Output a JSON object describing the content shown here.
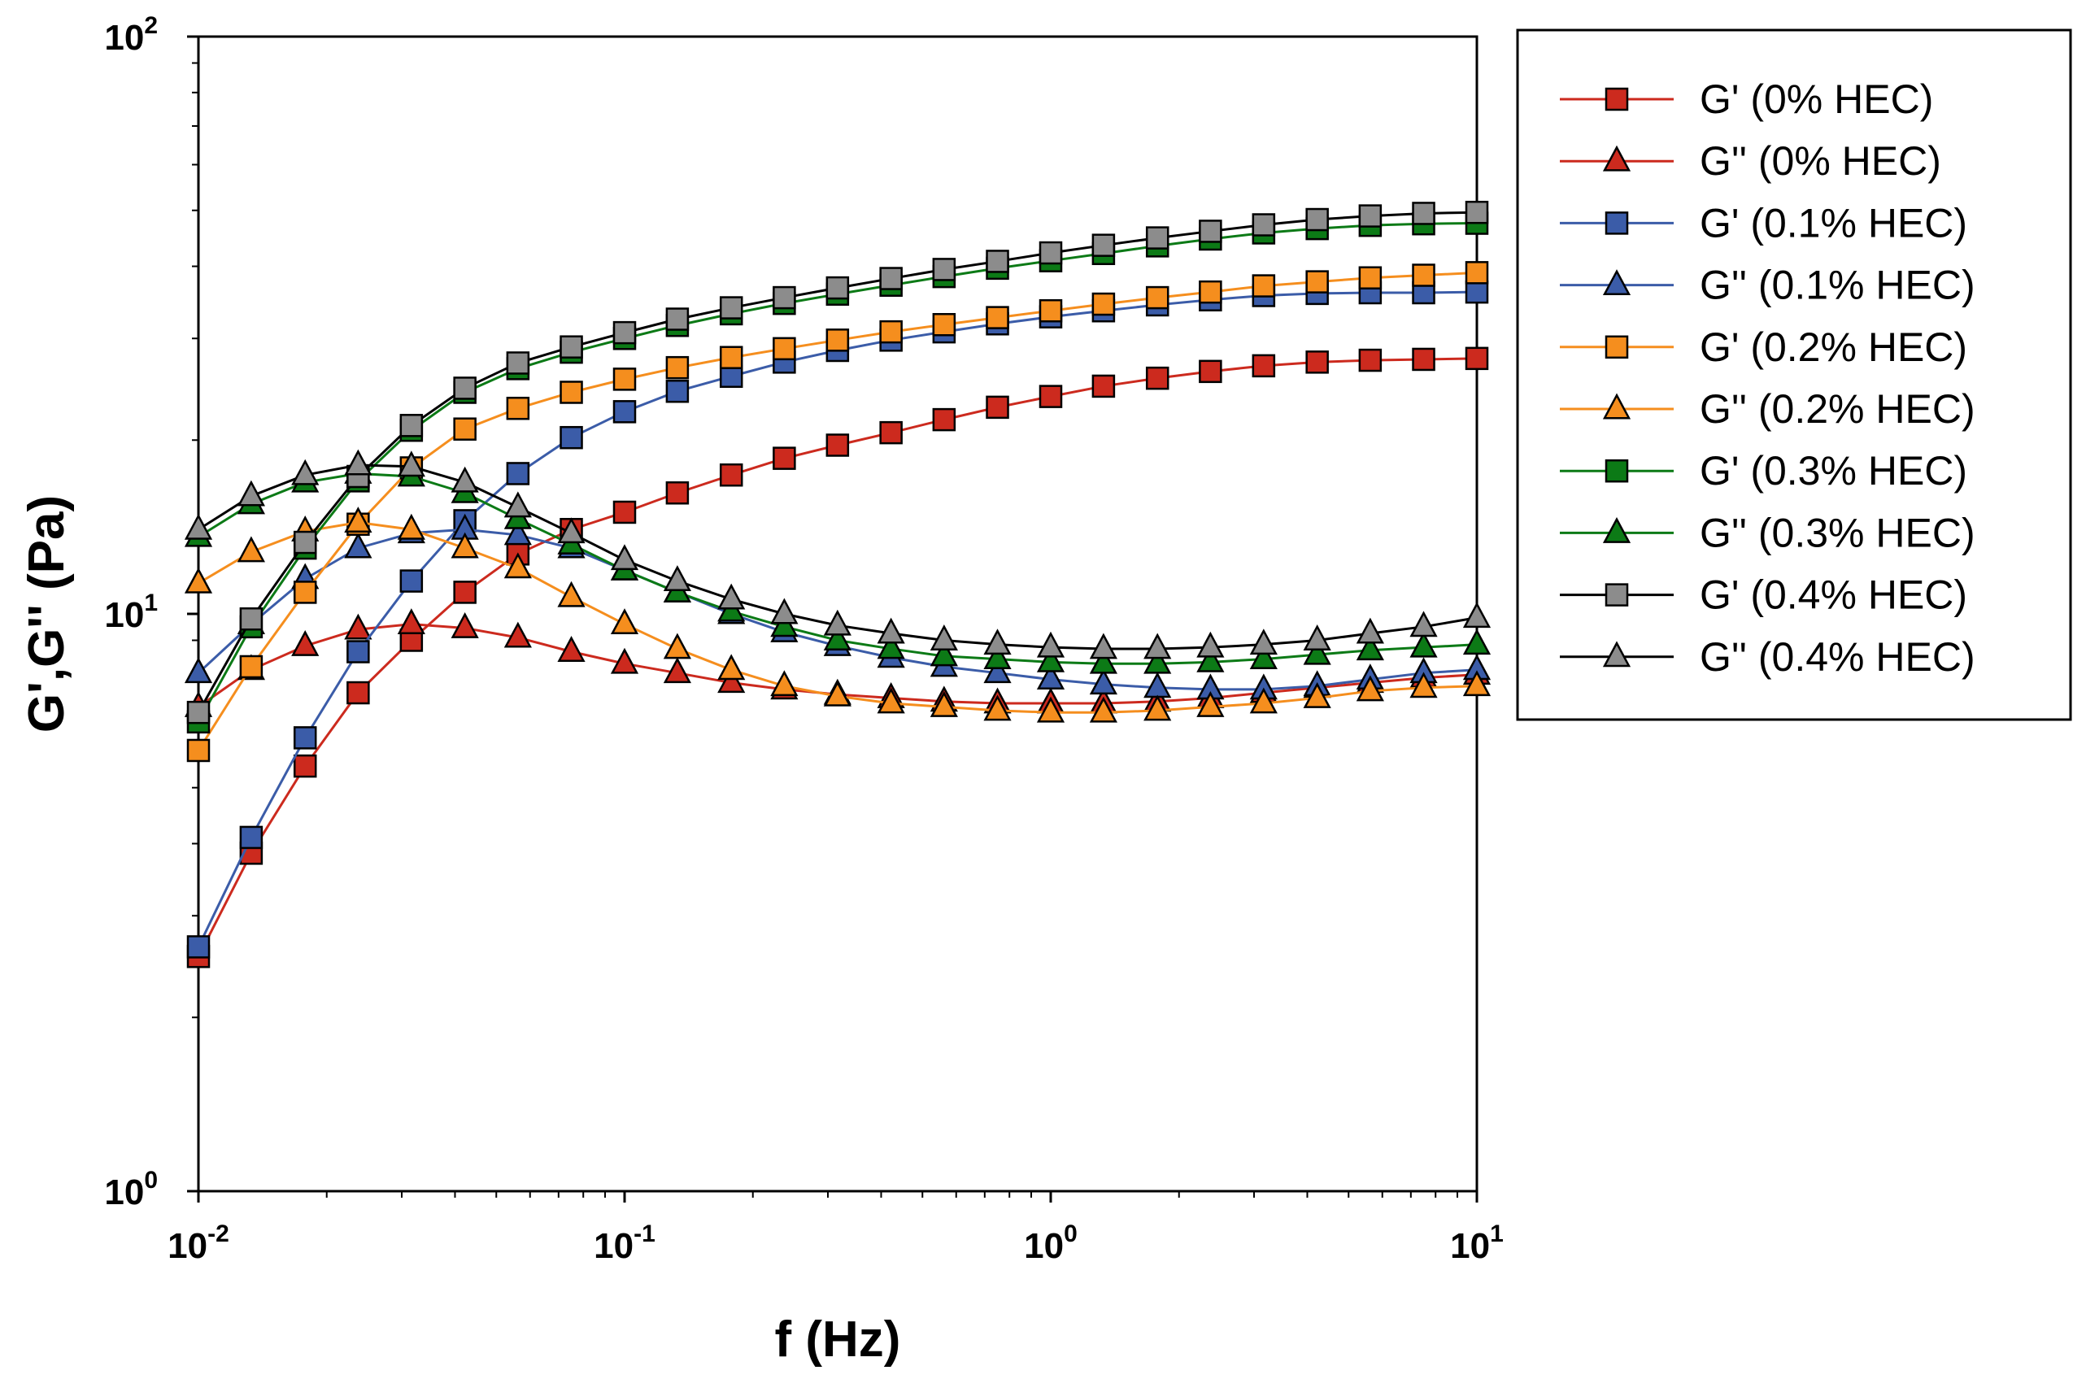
{
  "chart_data": {
    "type": "line",
    "title": "",
    "xlabel": "f (Hz)",
    "ylabel": "G',G'' (Pa)",
    "xscale": "log",
    "yscale": "log",
    "xlim": [
      0.01,
      10
    ],
    "ylim": [
      1,
      100
    ],
    "x_ticks": [
      {
        "value": 0.01,
        "base": "10",
        "exp": "-2"
      },
      {
        "value": 0.1,
        "base": "10",
        "exp": "-1"
      },
      {
        "value": 1,
        "base": "10",
        "exp": "0"
      },
      {
        "value": 10,
        "base": "10",
        "exp": "1"
      }
    ],
    "y_ticks": [
      {
        "value": 1,
        "base": "10",
        "exp": "0"
      },
      {
        "value": 10,
        "base": "10",
        "exp": "1"
      },
      {
        "value": 100,
        "base": "10",
        "exp": "2"
      }
    ],
    "grid": false,
    "legend_position": "outside-right",
    "x": [
      0.01,
      0.0133,
      0.0178,
      0.0237,
      0.0316,
      0.0422,
      0.0562,
      0.075,
      0.1,
      0.133,
      0.178,
      0.237,
      0.316,
      0.422,
      0.562,
      0.75,
      1.0,
      1.33,
      1.78,
      2.37,
      3.16,
      4.22,
      5.62,
      7.5,
      10.0
    ],
    "series": [
      {
        "name": "G' (0% HEC)",
        "marker": "square",
        "color": "#cc2a1e",
        "line_color": "#cc2a1e",
        "values": [
          2.55,
          3.85,
          5.45,
          7.3,
          9.0,
          10.9,
          12.7,
          14.0,
          15.0,
          16.2,
          17.4,
          18.6,
          19.6,
          20.6,
          21.7,
          22.8,
          23.8,
          24.8,
          25.6,
          26.3,
          26.9,
          27.3,
          27.5,
          27.6,
          27.7
        ]
      },
      {
        "name": "G'' (0% HEC)",
        "marker": "triangle",
        "color": "#cc2a1e",
        "line_color": "#cc2a1e",
        "values": [
          6.9,
          8.0,
          8.8,
          9.4,
          9.6,
          9.45,
          9.1,
          8.6,
          8.2,
          7.9,
          7.6,
          7.4,
          7.25,
          7.15,
          7.05,
          7.0,
          7.0,
          7.0,
          7.05,
          7.15,
          7.3,
          7.45,
          7.6,
          7.75,
          7.85
        ]
      },
      {
        "name": "G' (0.1% HEC)",
        "marker": "square",
        "color": "#3b5ca8",
        "line_color": "#3b5ca8",
        "values": [
          2.65,
          4.1,
          6.1,
          8.6,
          11.4,
          14.5,
          17.5,
          20.2,
          22.4,
          24.3,
          25.8,
          27.3,
          28.6,
          29.8,
          30.8,
          31.8,
          32.7,
          33.5,
          34.3,
          35.0,
          35.6,
          35.9,
          36.0,
          36.0,
          36.1
        ]
      },
      {
        "name": "G'' (0.1% HEC)",
        "marker": "triangle",
        "color": "#3b5ca8",
        "line_color": "#3b5ca8",
        "values": [
          7.9,
          9.6,
          11.5,
          13.0,
          13.8,
          14.0,
          13.7,
          13.0,
          11.9,
          10.9,
          10.0,
          9.3,
          8.8,
          8.4,
          8.1,
          7.9,
          7.7,
          7.55,
          7.45,
          7.4,
          7.4,
          7.5,
          7.7,
          7.9,
          8.0
        ]
      },
      {
        "name": "G' (0.2% HEC)",
        "marker": "square",
        "color": "#f58e1e",
        "line_color": "#f58e1e",
        "values": [
          5.8,
          8.1,
          10.9,
          14.3,
          17.9,
          20.9,
          22.7,
          24.2,
          25.5,
          26.7,
          27.8,
          28.8,
          29.8,
          30.8,
          31.7,
          32.6,
          33.5,
          34.4,
          35.3,
          36.1,
          37.0,
          37.6,
          38.2,
          38.6,
          39.0
        ]
      },
      {
        "name": "G'' (0.2% HEC)",
        "marker": "triangle",
        "color": "#f58e1e",
        "line_color": "#f58e1e",
        "values": [
          11.3,
          12.8,
          13.9,
          14.4,
          14.0,
          13.0,
          12.0,
          10.7,
          9.6,
          8.7,
          8.0,
          7.5,
          7.2,
          7.0,
          6.9,
          6.8,
          6.75,
          6.75,
          6.8,
          6.9,
          7.0,
          7.15,
          7.35,
          7.45,
          7.5
        ]
      },
      {
        "name": "G' (0.3% HEC)",
        "marker": "square",
        "color": "#0c7a16",
        "line_color": "#0c7a16",
        "values": [
          6.5,
          9.5,
          13.0,
          17.0,
          20.8,
          24.2,
          26.6,
          28.4,
          30.0,
          31.6,
          33.1,
          34.5,
          35.8,
          37.1,
          38.4,
          39.7,
          40.9,
          42.1,
          43.4,
          44.6,
          45.7,
          46.5,
          47.1,
          47.4,
          47.5
        ]
      },
      {
        "name": "G'' (0.3% HEC)",
        "marker": "triangle",
        "color": "#0c7a16",
        "line_color": "#0c7a16",
        "values": [
          13.6,
          15.5,
          16.9,
          17.5,
          17.3,
          16.2,
          14.6,
          13.2,
          11.9,
          10.9,
          10.1,
          9.5,
          9.0,
          8.7,
          8.45,
          8.35,
          8.25,
          8.2,
          8.2,
          8.25,
          8.35,
          8.5,
          8.65,
          8.75,
          8.85
        ]
      },
      {
        "name": "G' (0.4% HEC)",
        "marker": "square",
        "color": "#8c8c8c",
        "line_color": "#000000",
        "values": [
          6.75,
          9.8,
          13.3,
          17.3,
          21.2,
          24.6,
          27.2,
          29.0,
          30.7,
          32.4,
          33.9,
          35.3,
          36.7,
          38.1,
          39.5,
          40.8,
          42.2,
          43.5,
          44.8,
          46.0,
          47.2,
          48.2,
          48.9,
          49.4,
          49.6
        ]
      },
      {
        "name": "G'' (0.4% HEC)",
        "marker": "triangle",
        "color": "#8c8c8c",
        "line_color": "#000000",
        "values": [
          14.0,
          16.0,
          17.4,
          18.1,
          18.0,
          16.9,
          15.3,
          13.8,
          12.4,
          11.4,
          10.6,
          10.0,
          9.55,
          9.25,
          9.0,
          8.85,
          8.75,
          8.7,
          8.7,
          8.75,
          8.85,
          9.0,
          9.25,
          9.5,
          9.85
        ]
      }
    ]
  }
}
